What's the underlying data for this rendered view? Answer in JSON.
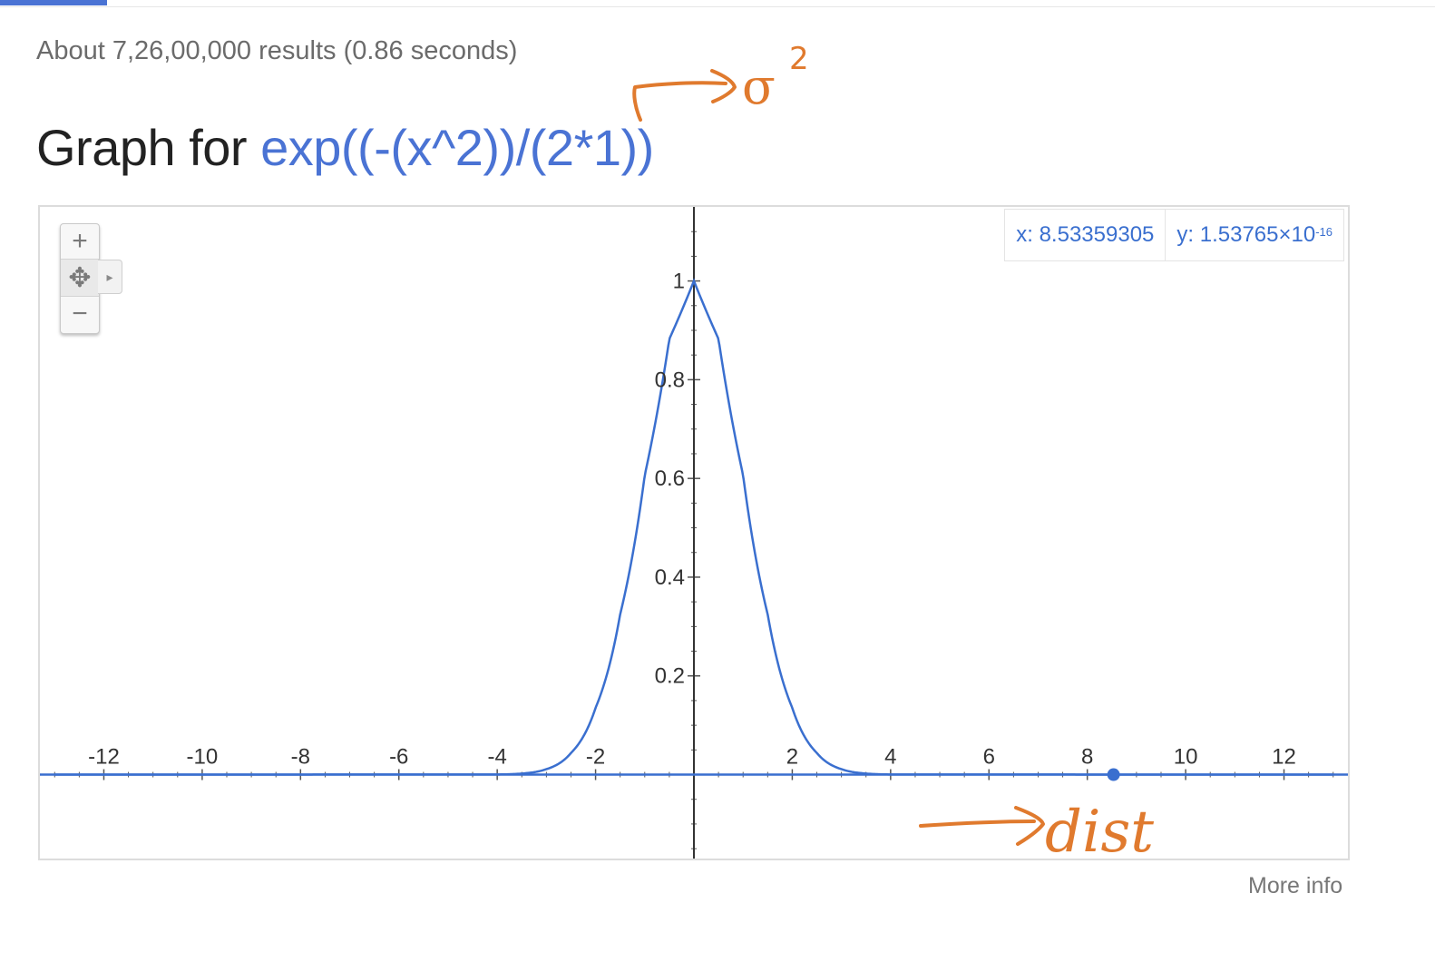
{
  "header": {
    "results_stats": "About 7,26,00,000 results (0.86 seconds)",
    "graph_prefix": "Graph for ",
    "graph_expression": "exp((-(x^2))/(2*1))",
    "accent_color": "#4a73d4"
  },
  "graph": {
    "controls": {
      "zoom_in_symbol": "+",
      "pan_symbol": "✥",
      "pan_arrow_symbol": "▸",
      "zoom_out_symbol": "−"
    },
    "readout": {
      "x_label": "x: 8.53359305",
      "y_label": "y: 1.53765×10",
      "y_exponent": "-16"
    },
    "more_info": "More info"
  },
  "annotations": {
    "ink_color": "#e07a2e",
    "sigma_note": "σ",
    "sigma_exponent": "2",
    "dist_note": "dist"
  },
  "chart_data": {
    "type": "line",
    "function": "exp((-(x^2))/(2*1))",
    "xlim": [
      -13.3,
      13.3
    ],
    "ylim": [
      -0.17,
      1.15
    ],
    "x_ticks": [
      -12,
      -10,
      -8,
      -6,
      -4,
      -2,
      2,
      4,
      6,
      8,
      10,
      12
    ],
    "x_tick_labels": [
      "-12",
      "-10",
      "-8",
      "-6",
      "-4",
      "-2",
      "2",
      "4",
      "6",
      "8",
      "10",
      "12"
    ],
    "y_ticks": [
      0.2,
      0.4,
      0.6,
      0.8,
      1
    ],
    "y_tick_labels": [
      "0.2",
      "0.4",
      "0.6",
      "0.8",
      "1"
    ],
    "grid": false,
    "line_color": "#3a6fcf",
    "series": [
      {
        "x": [
          -13,
          -4,
          -3.5,
          -3,
          -2.5,
          -2,
          -1.5,
          -1,
          -0.5,
          0,
          0.5,
          1,
          1.5,
          2,
          2.5,
          3,
          3.5,
          4,
          13
        ],
        "y": [
          0,
          0.0003,
          0.0022,
          0.0111,
          0.0439,
          0.1353,
          0.3247,
          0.6065,
          0.8825,
          1,
          0.8825,
          0.6065,
          0.3247,
          0.1353,
          0.0439,
          0.0111,
          0.0022,
          0.0003,
          0
        ]
      }
    ],
    "highlight_point": {
      "x": 8.53359305,
      "y": 0
    }
  }
}
